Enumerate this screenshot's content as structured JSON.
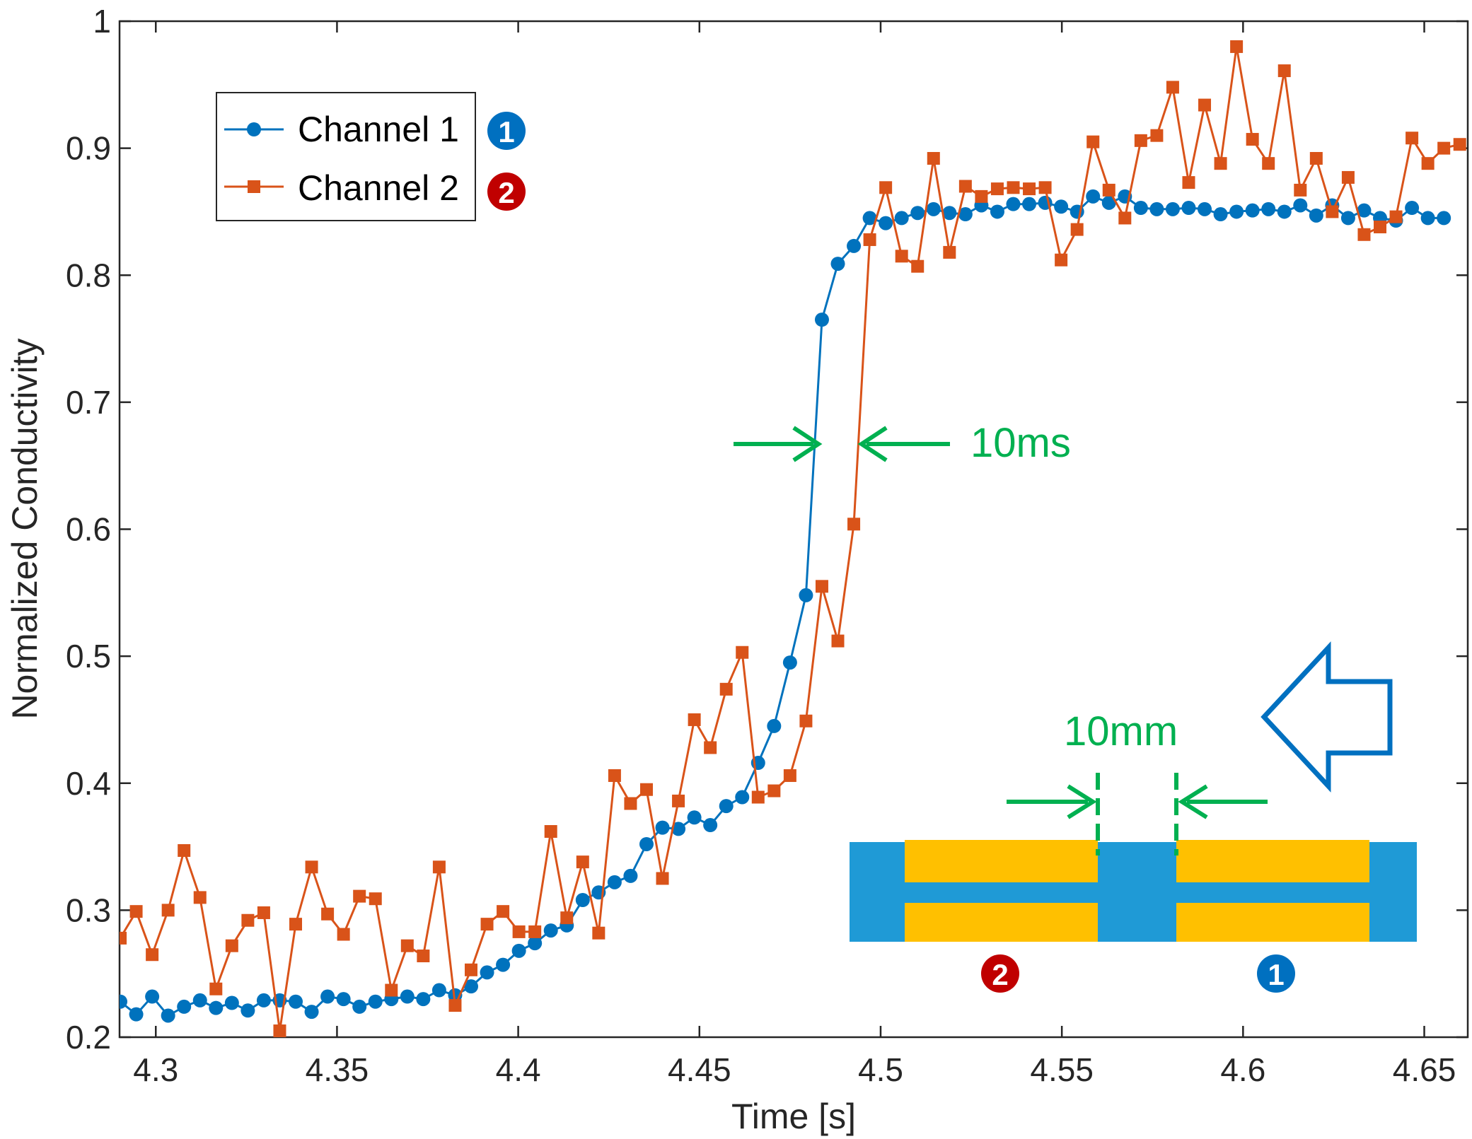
{
  "chart_data": {
    "type": "line",
    "title": "",
    "xlabel": "Time [s]",
    "ylabel": "Normalized Conductivity",
    "xlim": [
      4.29,
      4.662
    ],
    "ylim": [
      0.2,
      1.0
    ],
    "grid": false,
    "legend_position": "top-left",
    "x_ticks": [
      4.3,
      4.35,
      4.4,
      4.45,
      4.5,
      4.55,
      4.6,
      4.65
    ],
    "x_tick_labels": [
      "4.3",
      "4.35",
      "4.4",
      "4.45",
      "4.5",
      "4.55",
      "4.6",
      "4.65"
    ],
    "y_ticks": [
      0.2,
      0.3,
      0.4,
      0.5,
      0.6,
      0.7,
      0.8,
      0.9,
      1.0
    ],
    "y_tick_labels": [
      "0.2",
      "0.3",
      "0.4",
      "0.5",
      "0.6",
      "0.7",
      "0.8",
      "0.9",
      "1"
    ],
    "x_start": 4.2902,
    "x_step": 0.0044,
    "series": [
      {
        "name": "Channel 1",
        "badge": "1",
        "marker": "circle",
        "color": "#0072BD",
        "values": [
          0.228,
          0.218,
          0.232,
          0.217,
          0.224,
          0.229,
          0.223,
          0.227,
          0.221,
          0.229,
          0.229,
          0.228,
          0.22,
          0.232,
          0.23,
          0.224,
          0.228,
          0.23,
          0.232,
          0.23,
          0.237,
          0.233,
          0.24,
          0.251,
          0.257,
          0.268,
          0.274,
          0.284,
          0.288,
          0.308,
          0.314,
          0.322,
          0.327,
          0.352,
          0.365,
          0.364,
          0.373,
          0.367,
          0.382,
          0.389,
          0.416,
          0.445,
          0.495,
          0.548,
          0.765,
          0.809,
          0.823,
          0.845,
          0.841,
          0.845,
          0.849,
          0.852,
          0.849,
          0.848,
          0.855,
          0.85,
          0.856,
          0.856,
          0.857,
          0.854,
          0.85,
          0.862,
          0.857,
          0.862,
          0.853,
          0.852,
          0.852,
          0.853,
          0.852,
          0.848,
          0.85,
          0.851,
          0.852,
          0.85,
          0.855,
          0.847,
          0.855,
          0.845,
          0.851,
          0.845,
          0.843,
          0.853,
          0.845,
          0.845
        ]
      },
      {
        "name": "Channel 2",
        "badge": "2",
        "marker": "square",
        "color": "#D95319",
        "values": [
          0.278,
          0.299,
          0.265,
          0.3,
          0.347,
          0.31,
          0.238,
          0.272,
          0.292,
          0.298,
          0.205,
          0.289,
          0.334,
          0.297,
          0.281,
          0.311,
          0.309,
          0.237,
          0.272,
          0.264,
          0.334,
          0.225,
          0.253,
          0.289,
          0.299,
          0.283,
          0.283,
          0.362,
          0.294,
          0.338,
          0.282,
          0.406,
          0.384,
          0.395,
          0.325,
          0.386,
          0.45,
          0.428,
          0.474,
          0.503,
          0.389,
          0.394,
          0.406,
          0.449,
          0.555,
          0.512,
          0.604,
          0.828,
          0.869,
          0.815,
          0.807,
          0.892,
          0.818,
          0.87,
          0.862,
          0.868,
          0.869,
          0.868,
          0.869,
          0.812,
          0.836,
          0.905,
          0.867,
          0.845,
          0.906,
          0.91,
          0.948,
          0.873,
          0.934,
          0.888,
          0.98,
          0.907,
          0.888,
          0.961,
          0.867,
          0.892,
          0.85,
          0.877,
          0.832,
          0.838,
          0.846,
          0.908,
          0.888,
          0.9,
          0.903
        ]
      }
    ],
    "annotations": {
      "delay_text": "10ms",
      "distance_text": "10mm",
      "annotation_color": "#00B050",
      "diagram_label_left": "2",
      "diagram_label_right": "1",
      "flow_direction": "right-to-left"
    },
    "colors": {
      "channel_blue_pipe": "#1F9AD6",
      "electrode_yellow": "#FFC000",
      "badge_blue": "#0070C0",
      "badge_red": "#C00000",
      "flow_arrow": "#0070C0"
    }
  }
}
